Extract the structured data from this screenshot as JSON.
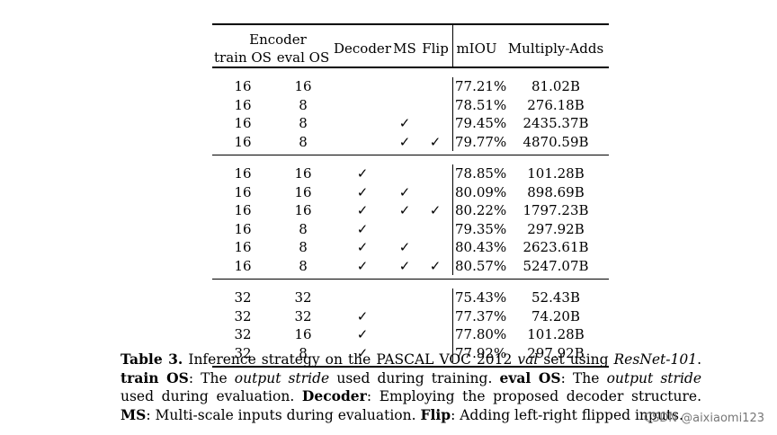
{
  "table": {
    "header": {
      "encoder": "Encoder",
      "train_os": "train OS",
      "eval_os": "eval OS",
      "decoder": "Decoder",
      "ms": "MS",
      "flip": "Flip",
      "miou": "mIOU",
      "multiply_adds": "Multiply-Adds"
    },
    "check_glyph": "✓",
    "groups": [
      {
        "rows": [
          {
            "train_os": "16",
            "eval_os": "16",
            "decoder": "",
            "ms": "",
            "flip": "",
            "miou": "77.21%",
            "multiply_adds": "81.02B"
          },
          {
            "train_os": "16",
            "eval_os": "8",
            "decoder": "",
            "ms": "",
            "flip": "",
            "miou": "78.51%",
            "multiply_adds": "276.18B"
          },
          {
            "train_os": "16",
            "eval_os": "8",
            "decoder": "",
            "ms": "✓",
            "flip": "",
            "miou": "79.45%",
            "multiply_adds": "2435.37B"
          },
          {
            "train_os": "16",
            "eval_os": "8",
            "decoder": "",
            "ms": "✓",
            "flip": "✓",
            "miou": "79.77%",
            "multiply_adds": "4870.59B"
          }
        ]
      },
      {
        "rows": [
          {
            "train_os": "16",
            "eval_os": "16",
            "decoder": "✓",
            "ms": "",
            "flip": "",
            "miou": "78.85%",
            "multiply_adds": "101.28B"
          },
          {
            "train_os": "16",
            "eval_os": "16",
            "decoder": "✓",
            "ms": "✓",
            "flip": "",
            "miou": "80.09%",
            "multiply_adds": "898.69B"
          },
          {
            "train_os": "16",
            "eval_os": "16",
            "decoder": "✓",
            "ms": "✓",
            "flip": "✓",
            "miou": "80.22%",
            "multiply_adds": "1797.23B"
          },
          {
            "train_os": "16",
            "eval_os": "8",
            "decoder": "✓",
            "ms": "",
            "flip": "",
            "miou": "79.35%",
            "multiply_adds": "297.92B"
          },
          {
            "train_os": "16",
            "eval_os": "8",
            "decoder": "✓",
            "ms": "✓",
            "flip": "",
            "miou": "80.43%",
            "multiply_adds": "2623.61B"
          },
          {
            "train_os": "16",
            "eval_os": "8",
            "decoder": "✓",
            "ms": "✓",
            "flip": "✓",
            "miou": "80.57%",
            "multiply_adds": "5247.07B"
          }
        ]
      },
      {
        "rows": [
          {
            "train_os": "32",
            "eval_os": "32",
            "decoder": "",
            "ms": "",
            "flip": "",
            "miou": "75.43%",
            "multiply_adds": "52.43B"
          },
          {
            "train_os": "32",
            "eval_os": "32",
            "decoder": "✓",
            "ms": "",
            "flip": "",
            "miou": "77.37%",
            "multiply_adds": "74.20B"
          },
          {
            "train_os": "32",
            "eval_os": "16",
            "decoder": "✓",
            "ms": "",
            "flip": "",
            "miou": "77.80%",
            "multiply_adds": "101.28B"
          },
          {
            "train_os": "32",
            "eval_os": "8",
            "decoder": "✓",
            "ms": "",
            "flip": "",
            "miou": "77.92%",
            "multiply_adds": "297.92B"
          }
        ]
      }
    ]
  },
  "caption": {
    "label": "Table 3.",
    "text1": " Inference strategy on the PASCAL VOC 2012 ",
    "val": "val",
    "text2": " set using ",
    "resnet": "ResNet-101",
    "text3": ".",
    "train_os_label": "train OS",
    "text4": ": The ",
    "output_stride_1": "output stride",
    "text5": " used during training. ",
    "eval_os_label": "eval OS",
    "text6": ": The ",
    "output_stride_2": "output stride",
    "text7": " used during evaluation. ",
    "decoder_label": "Decoder",
    "text8": ": Employing the proposed decoder structure. ",
    "ms_label": "MS",
    "text9": ": Multi-scale inputs during evaluation. ",
    "flip_label": "Flip",
    "text10": ": Adding left-right flipped inputs."
  },
  "watermark": "CSDN @aixiaomi123"
}
